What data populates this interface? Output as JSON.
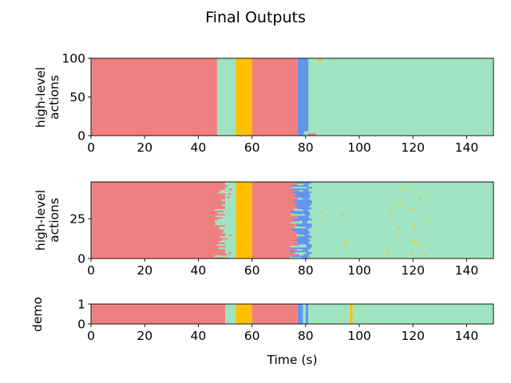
{
  "colors": {
    "red": "#f08080",
    "green": "#a0e3c0",
    "yellow": "#ffc000",
    "blue": "#6495ed"
  },
  "chart_data": {
    "type": "heatmap",
    "title": "Final Outputs",
    "xlabel": "Time (s)",
    "xlim": [
      0,
      150
    ],
    "xticks": [
      0,
      20,
      40,
      60,
      80,
      100,
      120,
      140
    ],
    "panels": [
      {
        "id": "panel-1",
        "ylabel": [
          "high-level",
          "actions"
        ],
        "ylim": [
          0,
          100
        ],
        "yticks": [
          0,
          50,
          100
        ],
        "row_order": "sorted by transition time",
        "segments": [
          {
            "color": "red",
            "start": 0,
            "end": 47,
            "rows": "all",
            "note": "ends 47-54 staggered"
          },
          {
            "color": "green",
            "start": 47,
            "end": 54,
            "rows": "staggered"
          },
          {
            "color": "yellow",
            "start": 54,
            "end": 60
          },
          {
            "color": "red",
            "start": 60,
            "end": 77
          },
          {
            "color": "blue",
            "start": 77,
            "end": 81
          },
          {
            "color": "green",
            "start": 81,
            "end": 150
          }
        ]
      },
      {
        "id": "panel-2",
        "ylabel": [
          "high-level",
          "actions"
        ],
        "ylim": [
          0,
          48
        ],
        "yticks": [
          0,
          25
        ],
        "segments": [
          {
            "color": "red",
            "start": 0,
            "end": 50,
            "rows": "all",
            "note": "ends 46-53 per row"
          },
          {
            "color": "green",
            "start": 50,
            "end": 54,
            "rows": "varies"
          },
          {
            "color": "yellow",
            "start": 54,
            "end": 60
          },
          {
            "color": "red",
            "start": 60,
            "end": 77
          },
          {
            "color": "blue",
            "start": 77,
            "end": 81
          },
          {
            "color": "green",
            "start": 81,
            "end": 150
          }
        ]
      },
      {
        "id": "panel-3",
        "ylabel": [
          "demo"
        ],
        "ylim": [
          0,
          1
        ],
        "yticks": [
          0,
          1
        ],
        "segments": [
          {
            "color": "red",
            "start": 0,
            "end": 50
          },
          {
            "color": "green",
            "start": 50,
            "end": 54
          },
          {
            "color": "yellow",
            "start": 54,
            "end": 60
          },
          {
            "color": "red",
            "start": 60,
            "end": 77
          },
          {
            "color": "blue",
            "start": 77,
            "end": 79
          },
          {
            "color": "green",
            "start": 79,
            "end": 80
          },
          {
            "color": "blue",
            "start": 80,
            "end": 81
          },
          {
            "color": "green",
            "start": 81,
            "end": 96.5
          },
          {
            "color": "yellow",
            "start": 96.5,
            "end": 97.5
          },
          {
            "color": "green",
            "start": 97.5,
            "end": 150
          }
        ]
      }
    ]
  }
}
